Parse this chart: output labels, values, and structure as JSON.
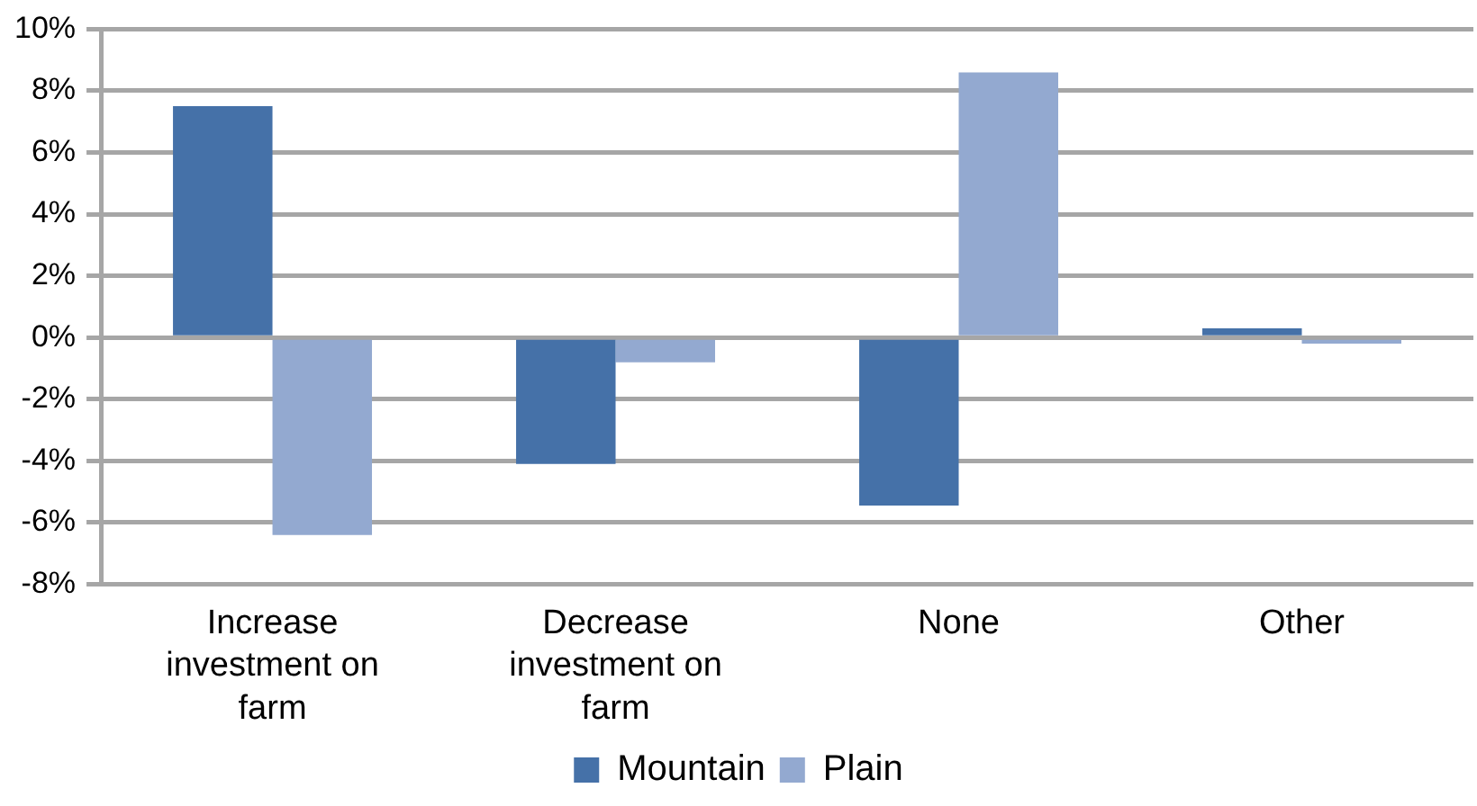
{
  "chart_data": {
    "type": "bar",
    "categories": [
      "Increase investment on farm",
      "Decrease investment on farm",
      "None",
      "Other"
    ],
    "series": [
      {
        "name": "Mountain",
        "color": "#4571a8",
        "values": [
          7.5,
          -4.1,
          -5.45,
          0.3
        ]
      },
      {
        "name": "Plain",
        "color": "#93a9d0",
        "values": [
          -6.4,
          -0.8,
          8.6,
          -0.2
        ]
      }
    ],
    "ylim": [
      -8,
      10
    ],
    "yticks": [
      {
        "value": -8,
        "label": "-8%"
      },
      {
        "value": -6,
        "label": "-6%"
      },
      {
        "value": -4,
        "label": "-4%"
      },
      {
        "value": -2,
        "label": "-2%"
      },
      {
        "value": 0,
        "label": "0%"
      },
      {
        "value": 2,
        "label": "2%"
      },
      {
        "value": 4,
        "label": "4%"
      },
      {
        "value": 6,
        "label": "6%"
      },
      {
        "value": 8,
        "label": "8%"
      },
      {
        "value": 10,
        "label": "10%"
      }
    ],
    "grid": "y",
    "legend": "bottom"
  }
}
